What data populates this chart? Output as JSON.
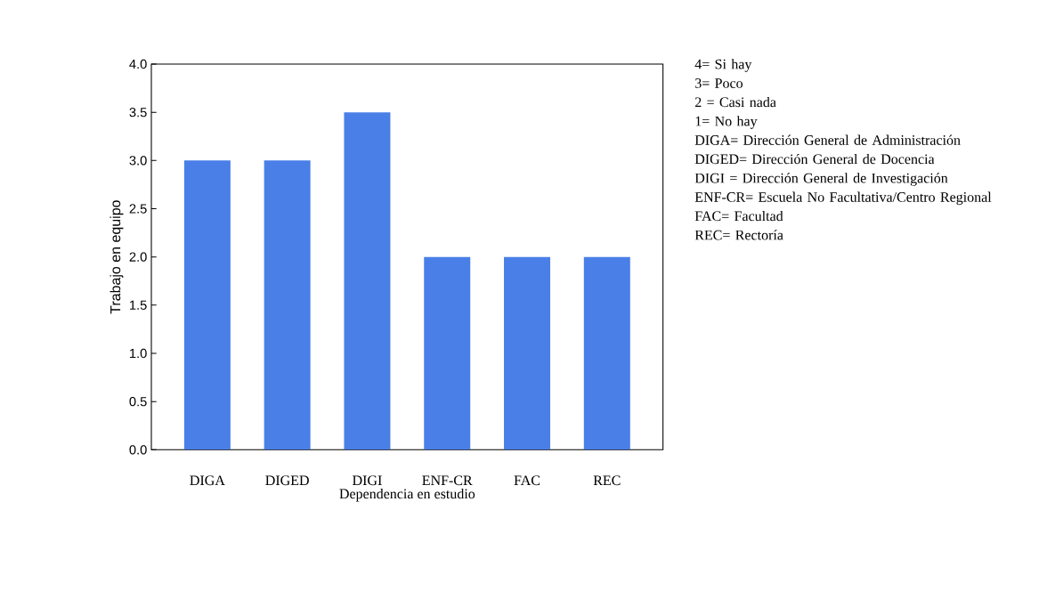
{
  "chart_data": {
    "type": "bar",
    "categories": [
      "DIGA",
      "DIGED",
      "DIGI",
      "ENF-CR",
      "FAC",
      "REC"
    ],
    "values": [
      3,
      3,
      3.5,
      2,
      2,
      2
    ],
    "color": "#4a7fe8",
    "xlabel": "Dependencia en estudio",
    "ylabel": "Trabajo en equipo",
    "ylim": [
      0,
      4
    ],
    "yticks": [
      {
        "value": 0,
        "label": "0.0"
      },
      {
        "value": 0.5,
        "label": "0.5"
      },
      {
        "value": 1,
        "label": "1.0"
      },
      {
        "value": 1.5,
        "label": "1.5"
      },
      {
        "value": 2,
        "label": "2.0"
      },
      {
        "value": 2.5,
        "label": "2.5"
      },
      {
        "value": 3,
        "label": "3.0"
      },
      {
        "value": 3.5,
        "label": "3.5"
      },
      {
        "value": 4,
        "label": "4.0"
      }
    ],
    "annotations": [
      "4= Si hay",
      "3= Poco",
      "2 = Casi nada",
      "1=  No hay",
      "DIGA= Dirección General de Administración",
      "DIGED= Dirección General de Docencia",
      "DIGI = Dirección General de Investigación",
      "ENF-CR= Escuela No Facultativa/Centro Regional",
      "FAC= Facultad",
      "REC= Rectoría"
    ]
  }
}
